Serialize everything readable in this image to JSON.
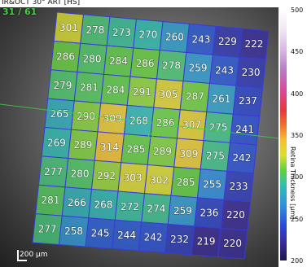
{
  "viewer": {
    "header": "IR&OCT 30° ART [HS]",
    "frame_counter": "31 / 61",
    "scale_bar": "200 µm"
  },
  "colorbar": {
    "title": "Retina Thickness [µm]",
    "ticks": [
      "500",
      "450",
      "400",
      "350",
      "300",
      "250",
      "200"
    ],
    "min": 200,
    "max": 500
  },
  "thickness_grid": [
    [
      301,
      278,
      273,
      270,
      260,
      243,
      229,
      222
    ],
    [
      286,
      280,
      284,
      286,
      278,
      259,
      243,
      230
    ],
    [
      279,
      281,
      284,
      291,
      305,
      287,
      261,
      237
    ],
    [
      265,
      290,
      309,
      268,
      286,
      307,
      275,
      241
    ],
    [
      269,
      289,
      314,
      285,
      289,
      309,
      275,
      242
    ],
    [
      277,
      280,
      292,
      303,
      302,
      285,
      255,
      233
    ],
    [
      281,
      266,
      268,
      272,
      274,
      259,
      236,
      220
    ],
    [
      277,
      258,
      245,
      244,
      242,
      232,
      219,
      220
    ]
  ],
  "colors": {
    "grid_line": "#3a3ad8",
    "frame_counter": "#3fd43f"
  }
}
